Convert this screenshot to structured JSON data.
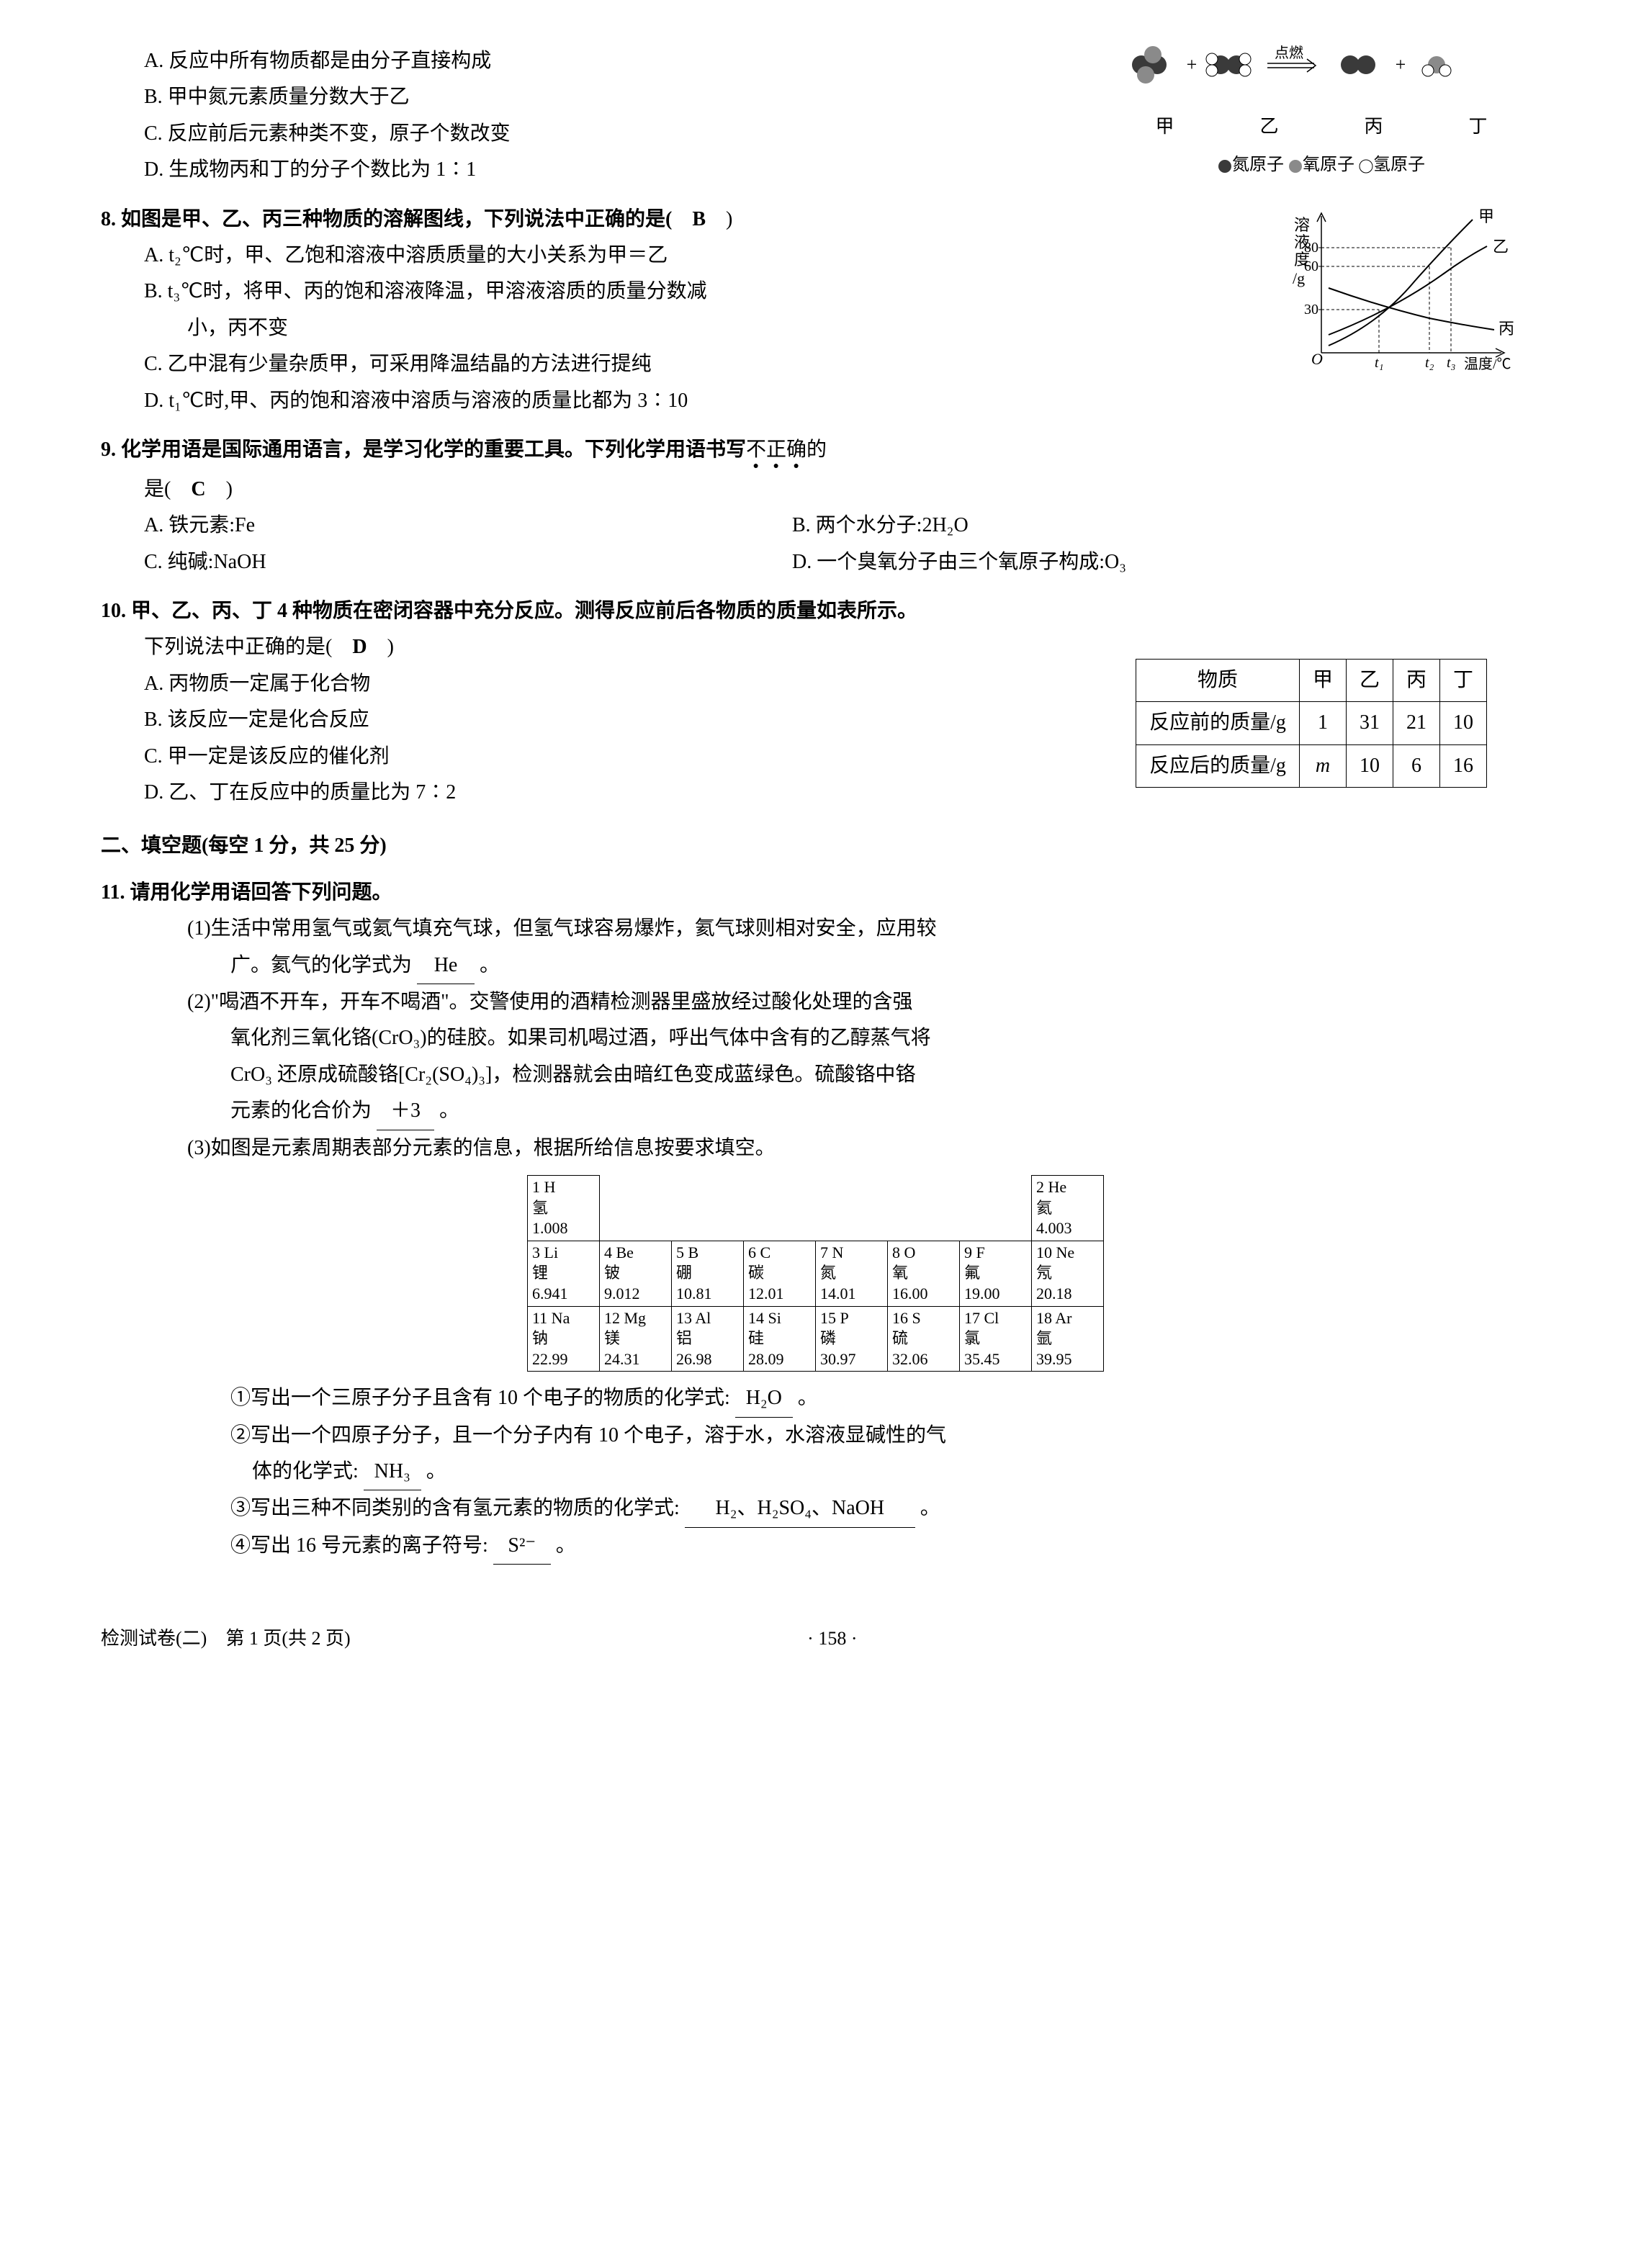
{
  "q7": {
    "optA": "A. 反应中所有物质都是由分子直接构成",
    "optB": "B. 甲中氮元素质量分数大于乙",
    "optC": "C. 反应前后元素种类不变，原子个数改变",
    "optD": "D. 生成物丙和丁的分子个数比为 1∶1",
    "diagram": {
      "labels": [
        "甲",
        "乙",
        "丙",
        "丁"
      ],
      "plus1": "+",
      "condition": "点燃",
      "plus2": "+",
      "legend": "●氮原子 ●氧原子 ○氢原子",
      "legend_colors": {
        "N": "#3a3a3a",
        "O": "#8a8a8a",
        "H": "#ffffff"
      }
    }
  },
  "q8": {
    "stem_a": "8. 如图是甲、乙、丙三种物质的溶解图线，下列说法中正确的是(　",
    "answer": "B",
    "stem_b": "　)",
    "optA": "A. t₂℃时，甲、乙饱和溶液中溶质质量的大小关系为甲＝乙",
    "optB_a": "B. t₃℃时，将甲、丙的饱和溶液降温，甲溶液溶质的质量分数减",
    "optB_b": "小，丙不变",
    "optC": "C. 乙中混有少量杂质甲，可采用降温结晶的方法进行提纯",
    "optD": "D. t₁℃时,甲、丙的饱和溶液中溶质与溶液的质量比都为 3∶10",
    "chart": {
      "ylabel_a": "溶",
      "ylabel_b": "液",
      "ylabel_c": "度",
      "yunit": "/g",
      "yticks": [
        30,
        60,
        80
      ],
      "xticks": [
        "t₁",
        "t₂",
        "t₃"
      ],
      "xlabel": "温度/℃",
      "curves": [
        "甲",
        "乙",
        "丙"
      ],
      "origin": "O",
      "line_color": "#000000",
      "background": "#ffffff"
    }
  },
  "q9": {
    "stem_a": "9. 化学用语是国际通用语言，是学习化学的重要工具。下列化学用语书写",
    "stem_emph": "不正确",
    "stem_b": "的",
    "stem_c": "是(　",
    "answer": "C",
    "stem_d": "　)",
    "optA": "A. 铁元素:Fe",
    "optB": "B. 两个水分子:2H₂O",
    "optC": "C. 纯碱:NaOH",
    "optD": "D. 一个臭氧分子由三个氧原子构成:O₃"
  },
  "q10": {
    "stem1": "10. 甲、乙、丙、丁 4 种物质在密闭容器中充分反应。测得反应前后各物质的质量如表所示。",
    "stem2_a": "下列说法中正确的是(　",
    "answer": "D",
    "stem2_b": "　)",
    "optA": "A. 丙物质一定属于化合物",
    "optB": "B. 该反应一定是化合反应",
    "optC": "C. 甲一定是该反应的催化剂",
    "optD": "D. 乙、丁在反应中的质量比为 7∶2",
    "table": {
      "headers": [
        "物质",
        "甲",
        "乙",
        "丙",
        "丁"
      ],
      "row1": [
        "反应前的质量/g",
        "1",
        "31",
        "21",
        "10"
      ],
      "row2": [
        "反应后的质量/g",
        "m",
        "10",
        "6",
        "16"
      ]
    }
  },
  "section2": "二、填空题(每空 1 分，共 25 分)",
  "q11": {
    "stem": "11. 请用化学用语回答下列问题。",
    "p1a": "(1)生活中常用氢气或氦气填充气球，但氢气球容易爆炸，氦气球则相对安全，应用较",
    "p1b_a": "广。氦气的化学式为",
    "p1_ans": "He",
    "p1b_b": "。",
    "p2a": "(2)\"喝酒不开车，开车不喝酒\"。交警使用的酒精检测器里盛放经过酸化处理的含强",
    "p2b": "氧化剂三氧化铬(CrO₃)的硅胶。如果司机喝过酒，呼出气体中含有的乙醇蒸气将",
    "p2c": "CrO₃ 还原成硫酸铬[Cr₂(SO₄)₃]，检测器就会由暗红色变成蓝绿色。硫酸铬中铬",
    "p2d_a": "元素的化合价为",
    "p2_ans": "＋3",
    "p2d_b": "。",
    "p3": "(3)如图是元素周期表部分元素的信息，根据所给信息按要求填空。",
    "periodic": {
      "rows": [
        [
          [
            "1 H",
            "氢",
            "1.008"
          ],
          null,
          null,
          null,
          null,
          null,
          null,
          [
            "2 He",
            "氦",
            "4.003"
          ]
        ],
        [
          [
            "3 Li",
            "锂",
            "6.941"
          ],
          [
            "4 Be",
            "铍",
            "9.012"
          ],
          [
            "5 B",
            "硼",
            "10.81"
          ],
          [
            "6 C",
            "碳",
            "12.01"
          ],
          [
            "7 N",
            "氮",
            "14.01"
          ],
          [
            "8 O",
            "氧",
            "16.00"
          ],
          [
            "9 F",
            "氟",
            "19.00"
          ],
          [
            "10 Ne",
            "氖",
            "20.18"
          ]
        ],
        [
          [
            "11 Na",
            "钠",
            "22.99"
          ],
          [
            "12 Mg",
            "镁",
            "24.31"
          ],
          [
            "13 Al",
            "铝",
            "26.98"
          ],
          [
            "14 Si",
            "硅",
            "28.09"
          ],
          [
            "15 P",
            "磷",
            "30.97"
          ],
          [
            "16 S",
            "硫",
            "32.06"
          ],
          [
            "17 Cl",
            "氯",
            "35.45"
          ],
          [
            "18 Ar",
            "氩",
            "39.95"
          ]
        ]
      ]
    },
    "p3_1a": "①写出一个三原子分子且含有 10 个电子的物质的化学式:",
    "p3_1_ans": "H₂O",
    "p3_1b": "。",
    "p3_2a": "②写出一个四原子分子，且一个分子内有 10 个电子，溶于水，水溶液显碱性的气",
    "p3_2b_a": "体的化学式:",
    "p3_2_ans": "NH₃",
    "p3_2b_b": "。",
    "p3_3a": "③写出三种不同类别的含有氢元素的物质的化学式:",
    "p3_3_ans": "H₂、H₂SO₄、NaOH",
    "p3_3b": "。",
    "p3_4a": "④写出 16 号元素的离子符号:",
    "p3_4_ans": "S²⁻",
    "p3_4b": "。"
  },
  "footer": {
    "left": "检测试卷(二)　第 1 页(共 2 页)",
    "center": "· 158 ·"
  }
}
